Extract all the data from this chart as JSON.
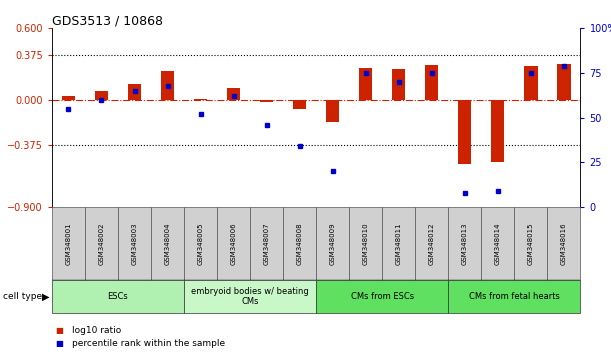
{
  "title": "GDS3513 / 10868",
  "samples": [
    "GSM348001",
    "GSM348002",
    "GSM348003",
    "GSM348004",
    "GSM348005",
    "GSM348006",
    "GSM348007",
    "GSM348008",
    "GSM348009",
    "GSM348010",
    "GSM348011",
    "GSM348012",
    "GSM348013",
    "GSM348014",
    "GSM348015",
    "GSM348016"
  ],
  "log10_ratio": [
    0.03,
    0.07,
    0.13,
    0.24,
    0.01,
    0.1,
    -0.02,
    -0.08,
    -0.19,
    0.27,
    0.26,
    0.29,
    -0.54,
    -0.52,
    0.28,
    0.3
  ],
  "percentile_rank": [
    55,
    60,
    65,
    68,
    52,
    62,
    46,
    34,
    20,
    75,
    70,
    75,
    8,
    9,
    75,
    79
  ],
  "ylim_left": [
    -0.9,
    0.6
  ],
  "ylim_right": [
    0,
    100
  ],
  "yticks_left": [
    -0.9,
    -0.375,
    0,
    0.375,
    0.6
  ],
  "yticks_right": [
    0,
    25,
    50,
    75,
    100
  ],
  "hlines": [
    0.375,
    -0.375
  ],
  "cell_type_groups": [
    {
      "label": "ESCs",
      "start": 0,
      "end": 3,
      "color": "#b0f0b0"
    },
    {
      "label": "embryoid bodies w/ beating\nCMs",
      "start": 4,
      "end": 7,
      "color": "#c8f8c8"
    },
    {
      "label": "CMs from ESCs",
      "start": 8,
      "end": 11,
      "color": "#60e060"
    },
    {
      "label": "CMs from fetal hearts",
      "start": 12,
      "end": 15,
      "color": "#60e060"
    }
  ],
  "bar_color": "#cc2200",
  "dot_color": "#0000cc",
  "zero_line_color": "#cc2200",
  "background_color": "#ffffff"
}
